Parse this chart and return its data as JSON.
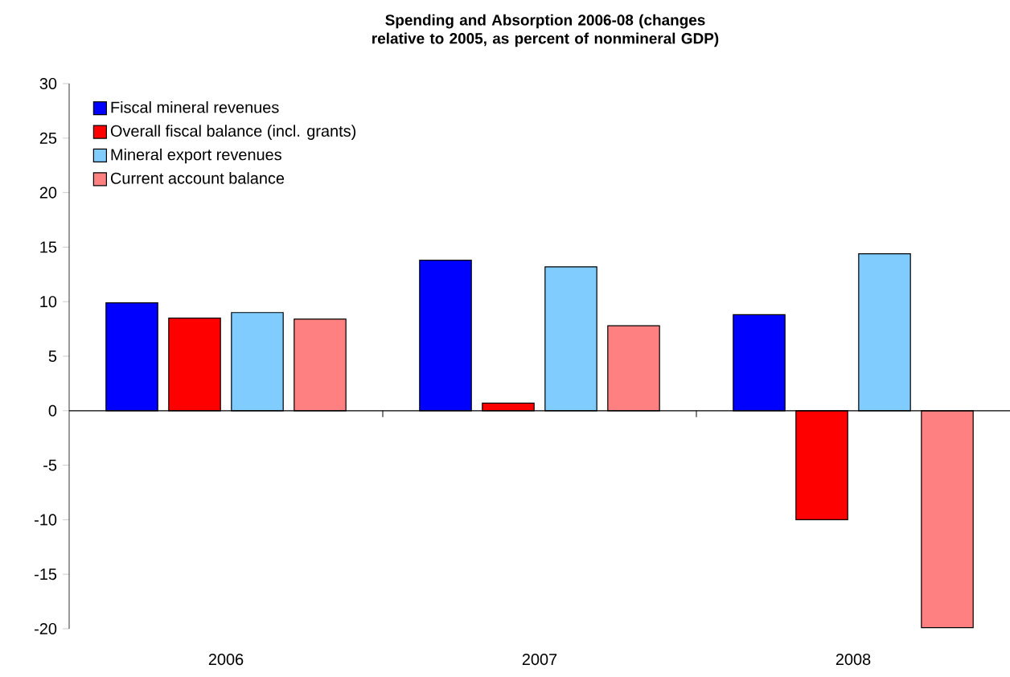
{
  "chart_data": {
    "type": "bar",
    "title": "Spending and Absorption 2006-08 (changes relative to 2005, as percent of nonmineral GDP)",
    "categories": [
      "2006",
      "2007",
      "2008"
    ],
    "series": [
      {
        "name": "Fiscal mineral revenues",
        "color": "#0000ff",
        "values": [
          9.9,
          13.8,
          8.8
        ]
      },
      {
        "name": "Overall fiscal balance (incl. grants)",
        "color": "#ff0000",
        "values": [
          8.5,
          0.7,
          -10
        ]
      },
      {
        "name": "Mineral export revenues",
        "color": "#80ccff",
        "values": [
          9.0,
          13.2,
          14.4
        ]
      },
      {
        "name": "Current account balance",
        "color": "#ff8080",
        "values": [
          8.4,
          7.8,
          -19.9
        ]
      }
    ],
    "ylim": [
      -20,
      30
    ],
    "yticks": [
      -20,
      -15,
      -10,
      -5,
      0,
      5,
      10,
      15,
      20,
      25,
      30
    ],
    "legend": "top left"
  }
}
